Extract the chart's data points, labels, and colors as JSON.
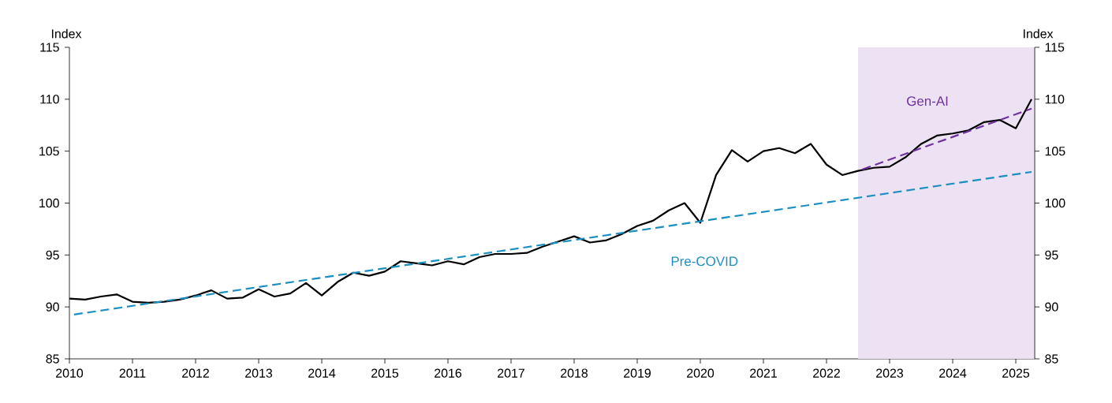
{
  "chart_data": {
    "type": "line",
    "ylabel": "Index",
    "y2label": "Index",
    "xlim": [
      2010,
      2025.3
    ],
    "xticks": [
      2010,
      2011,
      2012,
      2013,
      2014,
      2015,
      2016,
      2017,
      2018,
      2019,
      2020,
      2021,
      2022,
      2023,
      2024,
      2025
    ],
    "ylim": [
      85,
      115
    ],
    "yticks": [
      85,
      90,
      95,
      100,
      105,
      110,
      115
    ],
    "y2lim": [
      85,
      115
    ],
    "y2ticks": [
      85,
      90,
      95,
      100,
      105,
      110,
      115
    ],
    "bands": [
      {
        "axis": "x",
        "from": 2022.5,
        "to": 2025.3,
        "color": "#ece2f4"
      }
    ],
    "series": [
      {
        "color": "#000000",
        "line_style": "solid",
        "x": [
          2010,
          2010.25,
          2010.5,
          2010.75,
          2011,
          2011.25,
          2011.5,
          2011.75,
          2012,
          2012.25,
          2012.5,
          2012.75,
          2013,
          2013.25,
          2013.5,
          2013.75,
          2014,
          2014.25,
          2014.5,
          2014.75,
          2015,
          2015.25,
          2015.5,
          2015.75,
          2016,
          2016.25,
          2016.5,
          2016.75,
          2017,
          2017.25,
          2017.5,
          2017.75,
          2018,
          2018.25,
          2018.5,
          2018.75,
          2019,
          2019.25,
          2019.5,
          2019.75,
          2020,
          2020.25,
          2020.5,
          2020.75,
          2021,
          2021.25,
          2021.5,
          2021.75,
          2022,
          2022.25,
          2022.5,
          2022.75,
          2023,
          2023.25,
          2023.5,
          2023.75,
          2024,
          2024.25,
          2024.5,
          2024.75,
          2025,
          2025.25
        ],
        "values": [
          90.8,
          90.7,
          91.0,
          91.2,
          90.5,
          90.4,
          90.5,
          90.7,
          91.1,
          91.6,
          90.8,
          90.9,
          91.7,
          91.0,
          91.3,
          92.3,
          91.1,
          92.4,
          93.3,
          93.0,
          93.4,
          94.4,
          94.2,
          94.0,
          94.4,
          94.1,
          94.8,
          95.1,
          95.1,
          95.2,
          95.8,
          96.3,
          96.8,
          96.2,
          96.4,
          97.0,
          97.8,
          98.3,
          99.3,
          100.0,
          98.1,
          102.7,
          105.1,
          104.0,
          105.0,
          105.3,
          104.8,
          105.7,
          103.7,
          102.7,
          103.1,
          103.4,
          103.5,
          104.4,
          105.7,
          106.5,
          106.7,
          107.0,
          107.8,
          108.0,
          107.2,
          110.0
        ]
      },
      {
        "name": "Pre-COVID",
        "color": "#1a8fc0",
        "line_style": "dashed",
        "x": [
          2010,
          2025.25
        ],
        "values": [
          89.2,
          103.0
        ]
      },
      {
        "name": "Gen-AI",
        "color": "#7030a0",
        "line_style": "dashed",
        "x": [
          2022.5,
          2025.25
        ],
        "values": [
          103.1,
          109.1
        ]
      }
    ]
  }
}
